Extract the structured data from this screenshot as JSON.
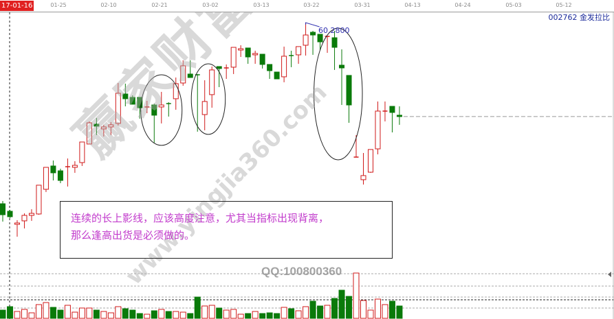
{
  "header": {
    "cursor_date": "17-01-16",
    "date_labels": [
      "01-25",
      "02-10",
      "02-21",
      "03-02",
      "03-13",
      "03-22",
      "03-31",
      "04-13",
      "04-24",
      "05-03",
      "05-12"
    ],
    "stock_title": "002762 金发拉比"
  },
  "annotation": {
    "line1": "连续的长上影线，应该高度注意，尤其当指标出现背离，",
    "line2": "那么逢高出货是必须做的。"
  },
  "peak_label": "60.2800",
  "watermark": {
    "site_cn": "赢家财富网",
    "site_url": "www.yingjia360.com",
    "qq": "QQ:100800360"
  },
  "colors": {
    "up": "#d01818",
    "down": "#0a7a0a",
    "ellipse": "#222222",
    "peak": "#3030b0"
  },
  "chart_data": {
    "type": "candlestick",
    "title": "002762 金发拉比",
    "x_tick_labels": [
      "01-25",
      "02-10",
      "02-21",
      "03-02",
      "03-13",
      "03-22",
      "03-31",
      "04-13",
      "04-24",
      "05-03",
      "05-12"
    ],
    "ohlc_order": [
      "open",
      "high",
      "low",
      "close"
    ],
    "candles": [
      [
        40.48,
        40.78,
        38.53,
        39.28
      ],
      [
        39.66,
        39.81,
        38.91,
        39.06
      ],
      [
        38.23,
        38.68,
        36.88,
        38.38
      ],
      [
        38.61,
        39.43,
        37.78,
        39.21
      ],
      [
        39.21,
        39.88,
        38.61,
        39.43
      ],
      [
        39.36,
        42.51,
        39.28,
        42.51
      ],
      [
        42.06,
        44.46,
        41.76,
        44.46
      ],
      [
        44.61,
        45.21,
        43.03,
        43.86
      ],
      [
        44.08,
        44.31,
        42.73,
        43.03
      ],
      [
        44.46,
        45.43,
        42.36,
        44.53
      ],
      [
        44.46,
        45.13,
        43.86,
        44.68
      ],
      [
        44.98,
        47.23,
        44.61,
        47.23
      ],
      [
        47.01,
        49.48,
        47.01,
        49.33
      ],
      [
        49.18,
        49.86,
        47.98,
        48.96
      ],
      [
        48.66,
        49.11,
        47.83,
        48.88
      ],
      [
        48.88,
        49.41,
        47.98,
        49.11
      ],
      [
        49.26,
        53.68,
        49.03,
        52.56
      ],
      [
        52.48,
        53.61,
        51.13,
        51.96
      ],
      [
        52.11,
        52.33,
        51.36,
        51.36
      ],
      [
        52.11,
        52.11,
        49.78,
        50.98
      ],
      [
        50.98,
        51.73,
        50.38,
        51.06
      ],
      [
        51.28,
        51.43,
        47.16,
        50.16
      ],
      [
        51.06,
        52.71,
        49.26,
        51.28
      ],
      [
        51.43,
        51.58,
        50.01,
        51.36
      ],
      [
        51.96,
        54.28,
        50.76,
        53.61
      ],
      [
        53.68,
        56.16,
        53.38,
        55.56
      ],
      [
        54.66,
        56.16,
        54.28,
        54.28
      ],
      [
        54.58,
        54.66,
        48.36,
        54.51
      ],
      [
        50.23,
        53.98,
        48.51,
        51.66
      ],
      [
        52.41,
        55.48,
        50.98,
        55.11
      ],
      [
        55.48,
        55.48,
        53.23,
        55.26
      ],
      [
        55.26,
        55.71,
        54.13,
        55.33
      ],
      [
        55.41,
        57.58,
        54.66,
        57.58
      ],
      [
        57.28,
        57.81,
        56.53,
        57.43
      ],
      [
        57.51,
        57.51,
        55.78,
        56.53
      ],
      [
        56.76,
        57.21,
        55.78,
        56.91
      ],
      [
        56.83,
        56.83,
        55.26,
        55.71
      ],
      [
        55.71,
        55.71,
        54.13,
        55.03
      ],
      [
        54.88,
        54.88,
        54.13,
        54.13
      ],
      [
        54.36,
        57.66,
        53.76,
        56.61
      ],
      [
        56.68,
        57.21,
        55.41,
        56.61
      ],
      [
        56.76,
        57.66,
        55.78,
        57.66
      ],
      [
        57.81,
        60.28,
        56.68,
        58.93
      ],
      [
        59.23,
        59.38,
        56.76,
        58.93
      ],
      [
        59.01,
        59.01,
        57.28,
        58.18
      ],
      [
        58.71,
        58.78,
        56.98,
        58.78
      ],
      [
        58.63,
        59.38,
        55.11,
        57.58
      ],
      [
        55.63,
        57.36,
        51.28,
        55.33
      ],
      [
        54.51,
        54.51,
        49.33,
        51.28
      ],
      [
        45.58,
        47.98,
        45.58,
        45.58
      ],
      [
        43.11,
        46.03,
        42.58,
        43.56
      ],
      [
        43.93,
        46.41,
        43.86,
        46.41
      ],
      [
        46.48,
        51.66,
        45.88,
        50.61
      ],
      [
        50.53,
        51.66,
        49.48,
        50.61
      ],
      [
        51.13,
        51.13,
        48.28,
        50.46
      ],
      [
        50.16,
        51.13,
        49.11,
        50.01
      ]
    ],
    "volume": [
      12,
      17,
      10,
      13,
      8,
      20,
      23,
      16,
      12,
      19,
      9,
      15,
      15,
      12,
      10,
      8,
      17,
      14,
      12,
      7,
      6,
      11,
      13,
      10,
      10,
      9,
      7,
      31,
      18,
      19,
      15,
      12,
      13,
      6,
      7,
      10,
      7,
      8,
      7,
      16,
      14,
      11,
      17,
      25,
      18,
      19,
      29,
      41,
      32,
      66,
      26,
      12,
      28,
      20,
      25,
      18
    ],
    "last_price": 50.01,
    "peak_high": 60.28,
    "highlighted_candle_groups": [
      [
        20,
        24
      ],
      [
        27,
        30
      ],
      [
        44,
        49
      ]
    ],
    "grid": false
  }
}
